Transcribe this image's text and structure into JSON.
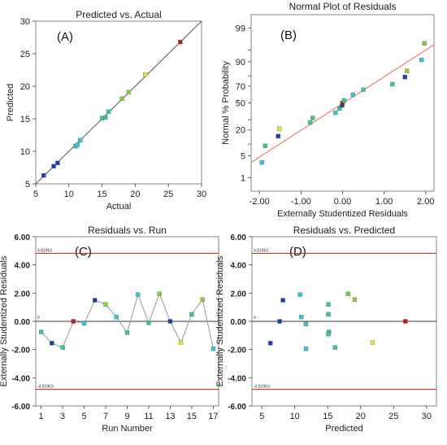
{
  "colors": {
    "fit_line": "#f07c70",
    "limit_line": "#e0302a",
    "zero_line": "#333333",
    "run_line": "#999999",
    "diag_line": "#555555"
  },
  "chart_data": [
    {
      "id": "A",
      "type": "scatter",
      "panel_label": "(A)",
      "title": "Predicted vs. Actual",
      "xlabel": "Actual",
      "ylabel": "Predicted",
      "xlim": [
        5,
        30
      ],
      "ylim": [
        5,
        30
      ],
      "xticks": [
        5,
        10,
        15,
        20,
        25,
        30
      ],
      "yticks": [
        5,
        10,
        15,
        20,
        25,
        30
      ],
      "reference_line": "y = x",
      "points": [
        {
          "x": 6.2,
          "y": 6.3,
          "color": "#1a3fb5"
        },
        {
          "x": 7.7,
          "y": 7.7,
          "color": "#1a3fb5"
        },
        {
          "x": 8.3,
          "y": 8.2,
          "color": "#1a3fb5"
        },
        {
          "x": 11.0,
          "y": 10.8,
          "color": "#34c6d8"
        },
        {
          "x": 11.3,
          "y": 11.0,
          "color": "#34c6d8"
        },
        {
          "x": 11.7,
          "y": 11.7,
          "color": "#34c6d8"
        },
        {
          "x": 15.0,
          "y": 15.1,
          "color": "#3cc78c"
        },
        {
          "x": 15.5,
          "y": 15.2,
          "color": "#3cc78c"
        },
        {
          "x": 16.0,
          "y": 16.1,
          "color": "#3cc78c"
        },
        {
          "x": 18.0,
          "y": 18.1,
          "color": "#7ccf3a"
        },
        {
          "x": 19.0,
          "y": 19.1,
          "color": "#8ed23a"
        },
        {
          "x": 21.5,
          "y": 21.8,
          "color": "#e8e03a"
        },
        {
          "x": 26.8,
          "y": 26.8,
          "color": "#b81f1f"
        }
      ]
    },
    {
      "id": "B",
      "type": "scatter",
      "panel_label": "(B)",
      "title": "Normal Plot of Residuals",
      "xlabel": "Externally Studentized Residuals",
      "ylabel": "Normal % Probability",
      "xlim": [
        -2.2,
        2.2
      ],
      "xticks": [
        -2.0,
        -1.0,
        0.0,
        1.0,
        2.0
      ],
      "xtick_labels": [
        "-2.00",
        "-1.00",
        "0.00",
        "1.00",
        "2.00"
      ],
      "yscale": "normal-probability",
      "yticks": [
        1,
        5,
        10,
        20,
        30,
        50,
        70,
        80,
        90,
        95,
        99
      ],
      "ytick_labels_shown": [
        "1",
        "5",
        "20",
        "50",
        "70",
        "90",
        "99"
      ],
      "points": [
        {
          "x": -1.94,
          "y": 3.2,
          "color": "#34c6d8"
        },
        {
          "x": -1.86,
          "y": 9.1,
          "color": "#3cc78c"
        },
        {
          "x": -1.55,
          "y": 15.0,
          "color": "#1a3fb5"
        },
        {
          "x": -1.52,
          "y": 21.0,
          "color": "#e8e03a"
        },
        {
          "x": -0.78,
          "y": 27.0,
          "color": "#3cc78c"
        },
        {
          "x": -0.72,
          "y": 32.0,
          "color": "#3cc78c"
        },
        {
          "x": -0.17,
          "y": 38.0,
          "color": "#34c6d8"
        },
        {
          "x": -0.07,
          "y": 43.0,
          "color": "#3cc78c"
        },
        {
          "x": -0.01,
          "y": 47.0,
          "color": "#1a3fb5"
        },
        {
          "x": 0.0,
          "y": 50.0,
          "color": "#b81f1f"
        },
        {
          "x": 0.04,
          "y": 53.0,
          "color": "#3cc78c"
        },
        {
          "x": 0.25,
          "y": 60.0,
          "color": "#34c6d8"
        },
        {
          "x": 0.5,
          "y": 66.0,
          "color": "#3cc78c"
        },
        {
          "x": 1.2,
          "y": 72.0,
          "color": "#3cc78c"
        },
        {
          "x": 1.5,
          "y": 79.0,
          "color": "#1a3fb5"
        },
        {
          "x": 1.55,
          "y": 84.0,
          "color": "#8ed23a"
        },
        {
          "x": 1.9,
          "y": 91.0,
          "color": "#34c6d8"
        },
        {
          "x": 1.97,
          "y": 96.8,
          "color": "#7ccf3a"
        }
      ],
      "fit_line": {
        "x": [
          -2.2,
          2.2
        ],
        "y": [
          3.2,
          96.5
        ]
      }
    },
    {
      "id": "C",
      "type": "line",
      "panel_label": "(C)",
      "title": "Residuals vs. Run",
      "xlabel": "Run Number",
      "ylabel": "Externally Studentized Residuals",
      "xlim": [
        0.5,
        17.5
      ],
      "ylim": [
        -6.0,
        6.0
      ],
      "xticks": [
        1,
        3,
        5,
        7,
        9,
        11,
        13,
        15,
        17
      ],
      "yticks": [
        -6,
        -4,
        -2,
        0,
        2,
        4,
        6
      ],
      "ytick_labels": [
        "-6.00",
        "-4.00",
        "-2.00",
        "0.00",
        "2.00",
        "4.00",
        "6.00"
      ],
      "limits": [
        4.81963,
        -4.81963
      ],
      "limit_labels": [
        "4.81963",
        "-4.81963"
      ],
      "zero_label": "0",
      "points": [
        {
          "x": 1,
          "y": -0.75,
          "color": "#3cc78c"
        },
        {
          "x": 2,
          "y": -1.55,
          "color": "#1a3fb5"
        },
        {
          "x": 3,
          "y": -1.85,
          "color": "#3cc78c"
        },
        {
          "x": 4,
          "y": 0.0,
          "color": "#b81f1f"
        },
        {
          "x": 5,
          "y": -0.15,
          "color": "#34c6d8"
        },
        {
          "x": 6,
          "y": 1.5,
          "color": "#1a3fb5"
        },
        {
          "x": 7,
          "y": 1.2,
          "color": "#8ed23a"
        },
        {
          "x": 8,
          "y": 0.3,
          "color": "#34c6d8"
        },
        {
          "x": 9,
          "y": -0.8,
          "color": "#3cc78c"
        },
        {
          "x": 10,
          "y": 1.9,
          "color": "#34c6d8"
        },
        {
          "x": 11,
          "y": -0.1,
          "color": "#3cc78c"
        },
        {
          "x": 12,
          "y": 1.95,
          "color": "#7ccf3a"
        },
        {
          "x": 13,
          "y": 0.0,
          "color": "#1a3fb5"
        },
        {
          "x": 14,
          "y": -1.5,
          "color": "#e8e03a"
        },
        {
          "x": 15,
          "y": 0.5,
          "color": "#3cc78c"
        },
        {
          "x": 16,
          "y": 1.55,
          "color": "#8ed23a"
        },
        {
          "x": 17,
          "y": -1.95,
          "color": "#34c6d8"
        }
      ]
    },
    {
      "id": "D",
      "type": "scatter",
      "panel_label": "(D)",
      "title": "Residuals vs. Predicted",
      "xlabel": "Predicted",
      "ylabel": "Externally Studentized Residuals",
      "xlim": [
        3.5,
        31.5
      ],
      "ylim": [
        -6.0,
        6.0
      ],
      "xticks": [
        5,
        10,
        15,
        20,
        25,
        30
      ],
      "yticks": [
        -6,
        -4,
        -2,
        0,
        2,
        4,
        6
      ],
      "ytick_labels": [
        "-6.00",
        "-4.00",
        "-2.00",
        "0.00",
        "2.00",
        "4.00",
        "6.00"
      ],
      "limits": [
        4.81963,
        -4.81963
      ],
      "limit_labels": [
        "4.81963",
        "-4.81963"
      ],
      "zero_label": "0",
      "points": [
        {
          "x": 6.3,
          "y": -1.55,
          "color": "#1a3fb5"
        },
        {
          "x": 7.7,
          "y": 0.0,
          "color": "#1a3fb5"
        },
        {
          "x": 8.2,
          "y": 1.5,
          "color": "#1a3fb5"
        },
        {
          "x": 10.8,
          "y": 1.9,
          "color": "#34c6d8"
        },
        {
          "x": 11.0,
          "y": 0.3,
          "color": "#34c6d8"
        },
        {
          "x": 11.7,
          "y": -0.2,
          "color": "#34c6d8"
        },
        {
          "x": 11.7,
          "y": -1.95,
          "color": "#34c6d8"
        },
        {
          "x": 15.1,
          "y": 1.2,
          "color": "#3cc78c"
        },
        {
          "x": 15.1,
          "y": 0.5,
          "color": "#3cc78c"
        },
        {
          "x": 15.2,
          "y": -0.75,
          "color": "#3cc78c"
        },
        {
          "x": 15.1,
          "y": -0.9,
          "color": "#3cc78c"
        },
        {
          "x": 16.1,
          "y": -1.85,
          "color": "#3cc78c"
        },
        {
          "x": 18.1,
          "y": 1.95,
          "color": "#7ccf3a"
        },
        {
          "x": 19.1,
          "y": 1.55,
          "color": "#8ed23a"
        },
        {
          "x": 21.8,
          "y": -1.5,
          "color": "#e8e03a"
        },
        {
          "x": 26.8,
          "y": 0.0,
          "color": "#b81f1f"
        }
      ]
    }
  ]
}
